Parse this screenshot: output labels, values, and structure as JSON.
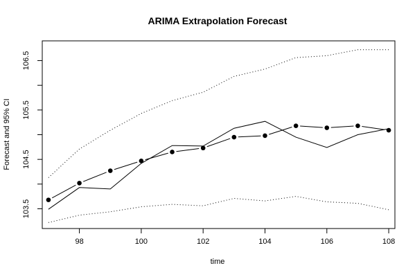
{
  "chart_data": {
    "type": "line",
    "title": "ARIMA Extrapolation Forecast",
    "xlabel": "time",
    "ylabel": "Forecast and 95% CI",
    "xlim": [
      96.8,
      108.2
    ],
    "ylim": [
      103.1,
      106.9
    ],
    "x_ticks": [
      98,
      100,
      102,
      104,
      106,
      108
    ],
    "x_tick_labels": [
      "98",
      "100",
      "102",
      "104",
      "106",
      "108"
    ],
    "y_ticks": [
      103.5,
      104.0,
      104.5,
      105.0,
      105.5,
      106.0,
      106.5
    ],
    "y_tick_labels": [
      "103.5",
      "",
      "104.5",
      "",
      "105.5",
      "",
      "106.5"
    ],
    "grid": false,
    "x": [
      97,
      98,
      99,
      100,
      101,
      102,
      103,
      104,
      105,
      106,
      107,
      108
    ],
    "series": [
      {
        "style": "solid",
        "values": [
          103.49,
          103.93,
          103.9,
          104.42,
          104.78,
          104.77,
          105.13,
          105.27,
          104.95,
          104.74,
          105.0,
          105.12
        ]
      },
      {
        "style": "dashed-points",
        "values": [
          103.68,
          104.02,
          104.27,
          104.47,
          104.65,
          104.73,
          104.95,
          104.98,
          105.18,
          105.14,
          105.18,
          105.09
        ]
      },
      {
        "style": "dotted",
        "values": [
          104.13,
          104.71,
          105.09,
          105.43,
          105.69,
          105.86,
          106.18,
          106.33,
          106.56,
          106.6,
          106.72,
          106.72
        ]
      },
      {
        "style": "dotted",
        "values": [
          103.22,
          103.37,
          103.44,
          103.54,
          103.59,
          103.56,
          103.71,
          103.66,
          103.75,
          103.64,
          103.61,
          103.48
        ]
      }
    ],
    "colors": {
      "line": "#000000",
      "background": "#ffffff"
    }
  }
}
